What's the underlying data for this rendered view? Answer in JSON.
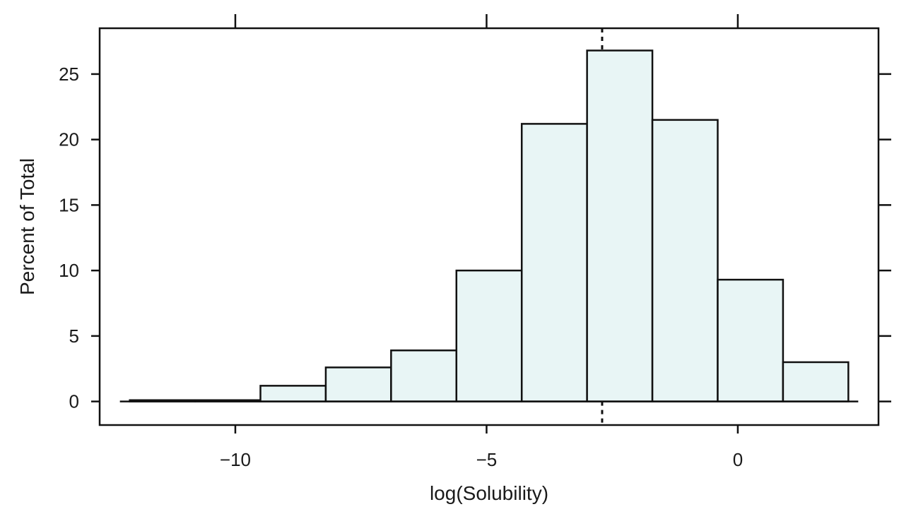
{
  "chart_data": {
    "type": "bar",
    "subtype": "histogram",
    "xlabel": "log(Solubility)",
    "ylabel": "Percent of Total",
    "xlim": [
      -12.7,
      2.8
    ],
    "ylim": [
      -1.8,
      28.5
    ],
    "x_ticks": [
      -10,
      -5,
      0
    ],
    "x_tick_labels": [
      "−10",
      "−5",
      "0"
    ],
    "y_ticks": [
      0,
      5,
      10,
      15,
      20,
      25
    ],
    "y_tick_labels": [
      "0",
      "5",
      "10",
      "15",
      "20",
      "25"
    ],
    "bins": [
      {
        "x0": -12.1,
        "x1": -10.8,
        "value": 0.1
      },
      {
        "x0": -10.8,
        "x1": -9.5,
        "value": 0.1
      },
      {
        "x0": -9.5,
        "x1": -8.2,
        "value": 1.2
      },
      {
        "x0": -8.2,
        "x1": -6.9,
        "value": 2.6
      },
      {
        "x0": -6.9,
        "x1": -5.6,
        "value": 3.9
      },
      {
        "x0": -5.6,
        "x1": -4.3,
        "value": 10.0
      },
      {
        "x0": -4.3,
        "x1": -3.0,
        "value": 21.2
      },
      {
        "x0": -3.0,
        "x1": -1.7,
        "value": 26.8
      },
      {
        "x0": -1.7,
        "x1": -0.4,
        "value": 21.5
      },
      {
        "x0": -0.4,
        "x1": 0.9,
        "value": 9.3
      },
      {
        "x0": 0.9,
        "x1": 2.2,
        "value": 3.0
      }
    ],
    "reference_line_x": -2.7,
    "bar_fill": "#e8f5f5",
    "bar_stroke": "#111111",
    "grid": false
  }
}
